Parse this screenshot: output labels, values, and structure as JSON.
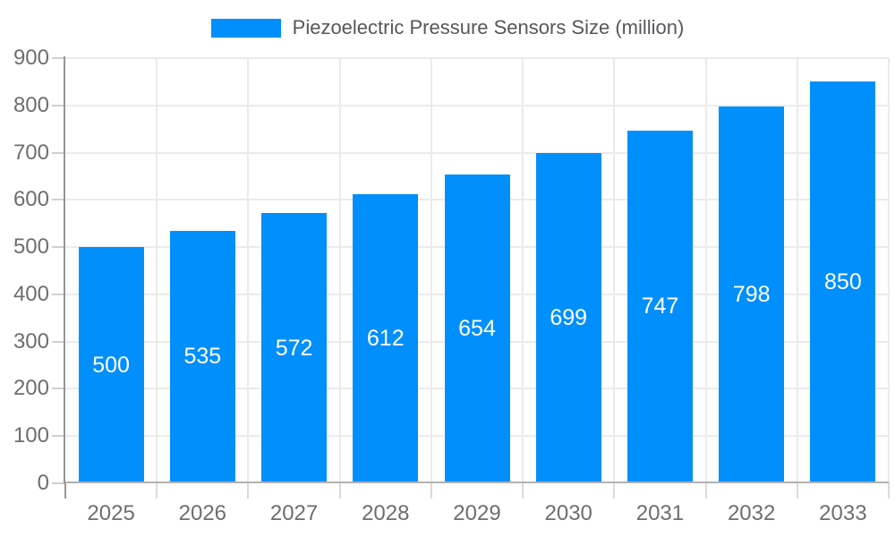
{
  "legend": {
    "label": "Piezoelectric Pressure Sensors Size (million)",
    "swatch_color": "#008FFB"
  },
  "chart_data": {
    "type": "bar",
    "title": "",
    "categories": [
      "2025",
      "2026",
      "2027",
      "2028",
      "2029",
      "2030",
      "2031",
      "2032",
      "2033"
    ],
    "series": [
      {
        "name": "Piezoelectric Pressure Sensors Size (million)",
        "values": [
          500,
          535,
          572,
          612,
          654,
          699,
          747,
          798,
          850
        ],
        "color": "#008FFB"
      }
    ],
    "xlabel": "",
    "ylabel": "",
    "ylim": [
      0,
      900
    ],
    "y_ticks": [
      0,
      100,
      200,
      300,
      400,
      500,
      600,
      700,
      800,
      900
    ],
    "grid": true,
    "legend_position": "top",
    "value_labels": {
      "visible": true,
      "position": "center",
      "color": "#ffffff"
    },
    "colors": {
      "bar": "#008FFB",
      "gridline": "#ebebeb",
      "axis_text": "#6e6e6e",
      "value_label": "#ffffff"
    }
  }
}
